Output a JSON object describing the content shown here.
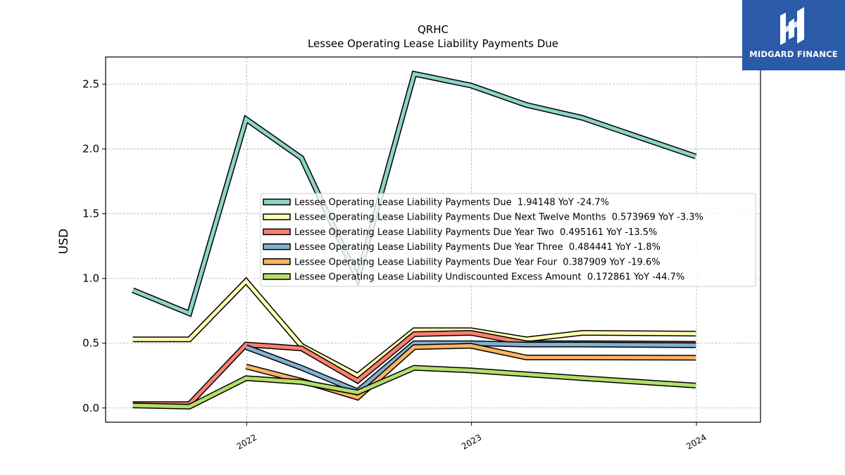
{
  "logo": {
    "text": "MIDGARD FINANCE",
    "icon": "midgard-m-logo-icon",
    "bg": "#2a5aa8"
  },
  "chart_data": {
    "type": "line",
    "title": "QRHC",
    "subtitle": "Lessee Operating Lease Liability Payments Due",
    "ylabel": "USD",
    "xlabel": "",
    "xlim": [
      "2021-05-17",
      "2024-04-14"
    ],
    "ylim": [
      -0.11,
      2.71
    ],
    "yticks": [
      0.0,
      0.5,
      1.0,
      1.5,
      2.0,
      2.5
    ],
    "ytick_labels": [
      "0.0",
      "0.5",
      "1.0",
      "1.5",
      "2.0",
      "2.5"
    ],
    "xticks": [
      "2022-01-01",
      "2023-01-01",
      "2024-01-01"
    ],
    "xtick_labels": [
      "2022",
      "2023",
      "2024"
    ],
    "grid": true,
    "legend_position": "center-right",
    "series": [
      {
        "name": "Lessee Operating Lease Liability Payments Due",
        "legend": "Lessee Operating Lease Liability Payments Due  1.94148 YoY -24.7%",
        "color": "#8dd3c7",
        "points": [
          [
            "2021-06-30",
            0.91
          ],
          [
            "2021-09-30",
            0.73
          ],
          [
            "2021-12-31",
            2.23
          ],
          [
            "2022-03-31",
            1.93
          ],
          [
            "2022-06-30",
            1.0
          ],
          [
            "2022-09-30",
            2.58
          ],
          [
            "2022-12-31",
            2.49
          ],
          [
            "2023-03-31",
            2.34
          ],
          [
            "2023-06-30",
            2.24
          ],
          [
            "2023-12-31",
            1.94148
          ]
        ]
      },
      {
        "name": "Lessee Operating Lease Liability Payments Due Next Twelve Months",
        "legend": "Lessee Operating Lease Liability Payments Due Next Twelve Months  0.573969 YoY -3.3%",
        "color": "#ffffb3",
        "points": [
          [
            "2021-06-30",
            0.53
          ],
          [
            "2021-09-30",
            0.53
          ],
          [
            "2021-12-31",
            0.98
          ],
          [
            "2022-03-31",
            0.48
          ],
          [
            "2022-06-30",
            0.25
          ],
          [
            "2022-09-30",
            0.6
          ],
          [
            "2022-12-31",
            0.6
          ],
          [
            "2023-03-31",
            0.53
          ],
          [
            "2023-06-30",
            0.58
          ],
          [
            "2023-12-31",
            0.573969
          ]
        ]
      },
      {
        "name": "Lessee Operating Lease Liability Payments Due Year Two",
        "legend": "Lessee Operating Lease Liability Payments Due Year Two  0.495161 YoY -13.5%",
        "color": "#fb8072",
        "points": [
          [
            "2021-06-30",
            0.03
          ],
          [
            "2021-09-30",
            0.03
          ],
          [
            "2021-12-31",
            0.49
          ],
          [
            "2022-03-31",
            0.46
          ],
          [
            "2022-06-30",
            0.21
          ],
          [
            "2022-09-30",
            0.57
          ],
          [
            "2022-12-31",
            0.58
          ],
          [
            "2023-03-31",
            0.5
          ],
          [
            "2023-06-30",
            0.5
          ],
          [
            "2023-12-31",
            0.495161
          ]
        ]
      },
      {
        "name": "Lessee Operating Lease Liability Payments Due Year Three",
        "legend": "Lessee Operating Lease Liability Payments Due Year Three  0.484441 YoY -1.8%",
        "color": "#80b1d3",
        "points": [
          [
            "2021-12-31",
            0.47
          ],
          [
            "2022-03-31",
            0.31
          ],
          [
            "2022-06-30",
            0.13
          ],
          [
            "2022-09-30",
            0.5
          ],
          [
            "2022-12-31",
            0.5
          ],
          [
            "2023-03-31",
            0.49
          ],
          [
            "2023-06-30",
            0.49
          ],
          [
            "2023-12-31",
            0.484441
          ]
        ]
      },
      {
        "name": "Lessee Operating Lease Liability Payments Due Year Four",
        "legend": "Lessee Operating Lease Liability Payments Due Year Four  0.387909 YoY -19.6%",
        "color": "#fdb462",
        "points": [
          [
            "2021-12-31",
            0.32
          ],
          [
            "2022-03-31",
            0.21
          ],
          [
            "2022-06-30",
            0.08
          ],
          [
            "2022-09-30",
            0.47
          ],
          [
            "2022-12-31",
            0.48
          ],
          [
            "2023-03-31",
            0.39
          ],
          [
            "2023-06-30",
            0.39
          ],
          [
            "2023-12-31",
            0.387909
          ]
        ]
      },
      {
        "name": "Lessee Operating Lease Liability Undiscounted Excess Amount",
        "legend": "Lessee Operating Lease Liability Undiscounted Excess Amount  0.172861 YoY -44.7%",
        "color": "#b3de69",
        "points": [
          [
            "2021-06-30",
            0.02
          ],
          [
            "2021-09-30",
            0.01
          ],
          [
            "2021-12-31",
            0.23
          ],
          [
            "2022-03-31",
            0.2
          ],
          [
            "2022-06-30",
            0.12
          ],
          [
            "2022-09-30",
            0.31
          ],
          [
            "2022-12-31",
            0.29
          ],
          [
            "2023-03-31",
            0.26
          ],
          [
            "2023-06-30",
            0.23
          ],
          [
            "2023-12-31",
            0.172861
          ]
        ]
      }
    ]
  }
}
